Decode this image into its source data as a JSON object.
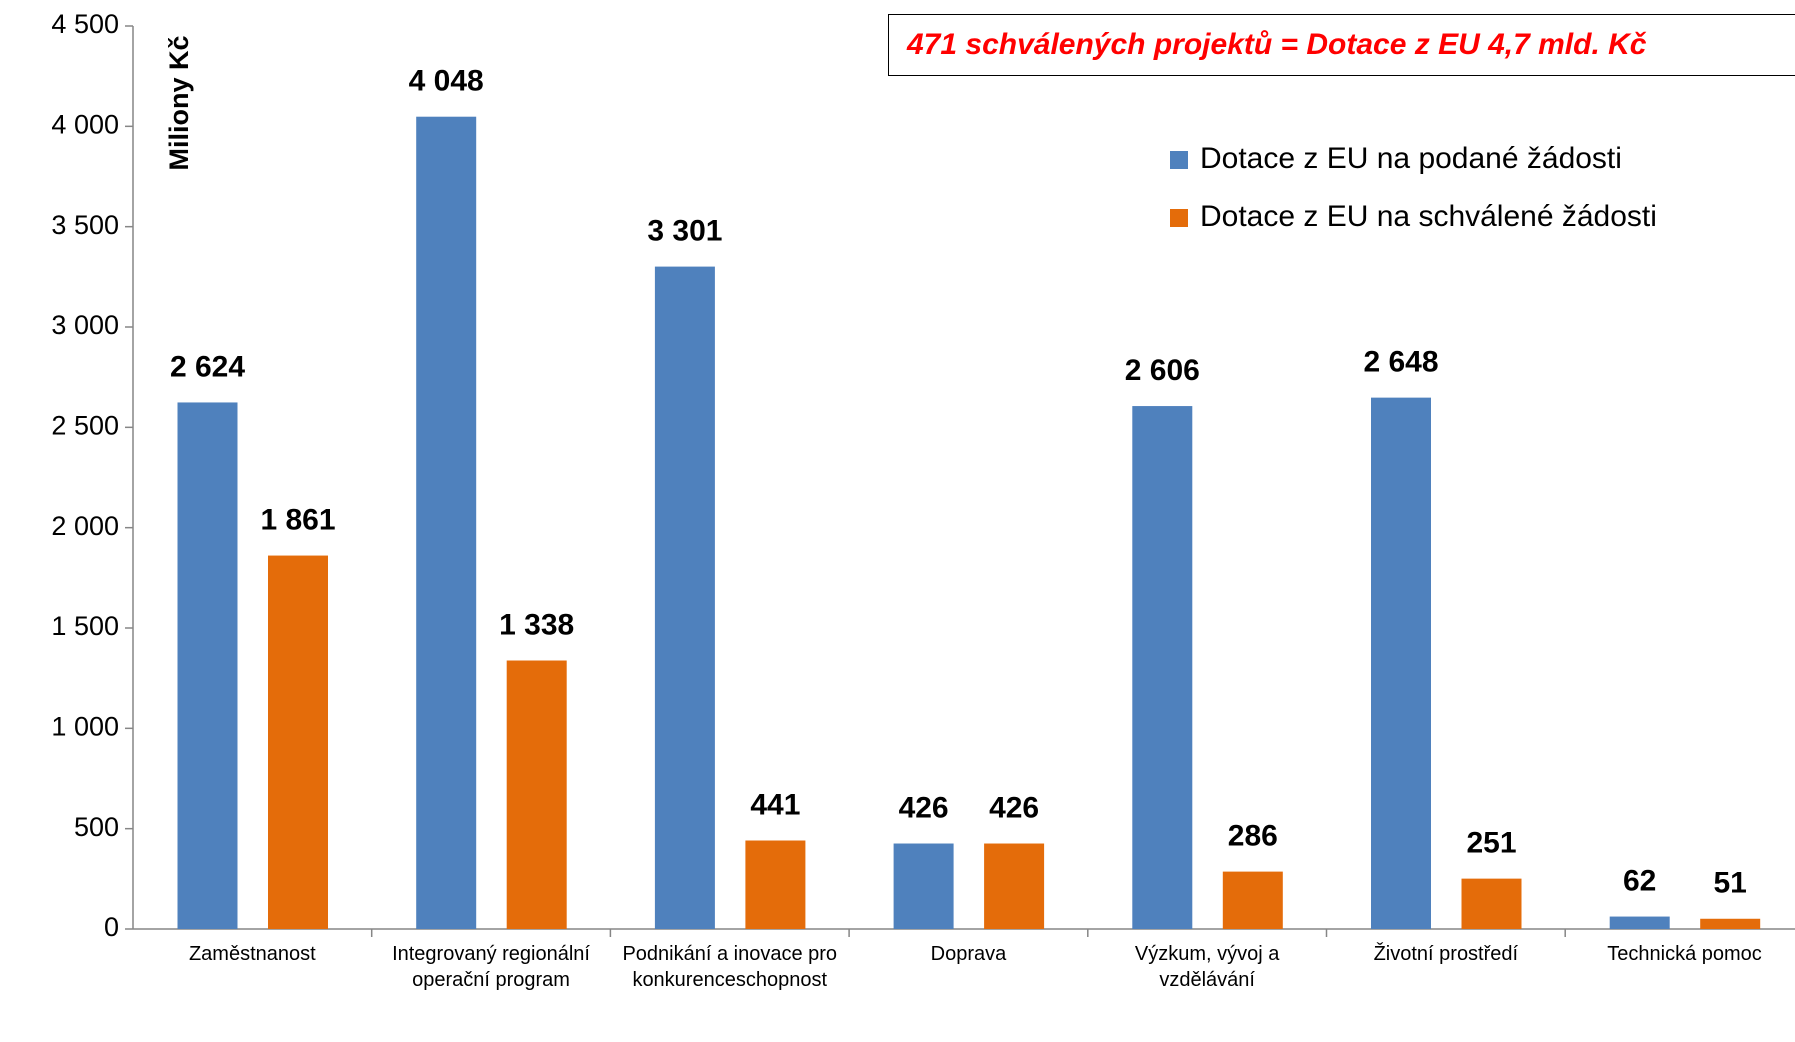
{
  "chart_data": {
    "type": "bar",
    "annotation": "471 schválených projektů = Dotace z EU 4,7 mld. Kč",
    "ylabel": "Miliony Kč",
    "categories": [
      "Zaměstnanost",
      "Integrovaný regionální operační program",
      "Podnikání a inovace pro konkurenceschopnost",
      "Doprava",
      "Výzkum, vývoj a vzdělávání",
      "Životní prostředí",
      "Technická pomoc"
    ],
    "series": [
      {
        "name": "Dotace z EU na podané žádosti",
        "color": "#4f81bd",
        "values": [
          2624,
          4048,
          3301,
          426,
          2606,
          2648,
          62
        ],
        "value_labels": [
          "2 624",
          "4 048",
          "3 301",
          "426",
          "2 606",
          "2 648",
          "62"
        ]
      },
      {
        "name": "Dotace z EU na schválené žádosti",
        "color": "#e46c0a",
        "values": [
          1861,
          1338,
          441,
          426,
          286,
          251,
          51
        ],
        "value_labels": [
          "1 861",
          "1 338",
          "441",
          "426",
          "286",
          "251",
          "51"
        ]
      }
    ],
    "ylim": [
      0,
      4500
    ],
    "yticks": [
      0,
      500,
      {
        "value": 1000,
        "label": "1 000"
      },
      {
        "value": 1500,
        "label": "1 500"
      },
      {
        "value": 2000,
        "label": "2 000"
      },
      {
        "value": 2500,
        "label": "2 500"
      },
      {
        "value": 3000,
        "label": "3 000"
      },
      {
        "value": 3500,
        "label": "3 500"
      },
      {
        "value": 4000,
        "label": "4 000"
      },
      {
        "value": 4500,
        "label": "4 500"
      }
    ],
    "legend": "upper right",
    "grid": false
  }
}
